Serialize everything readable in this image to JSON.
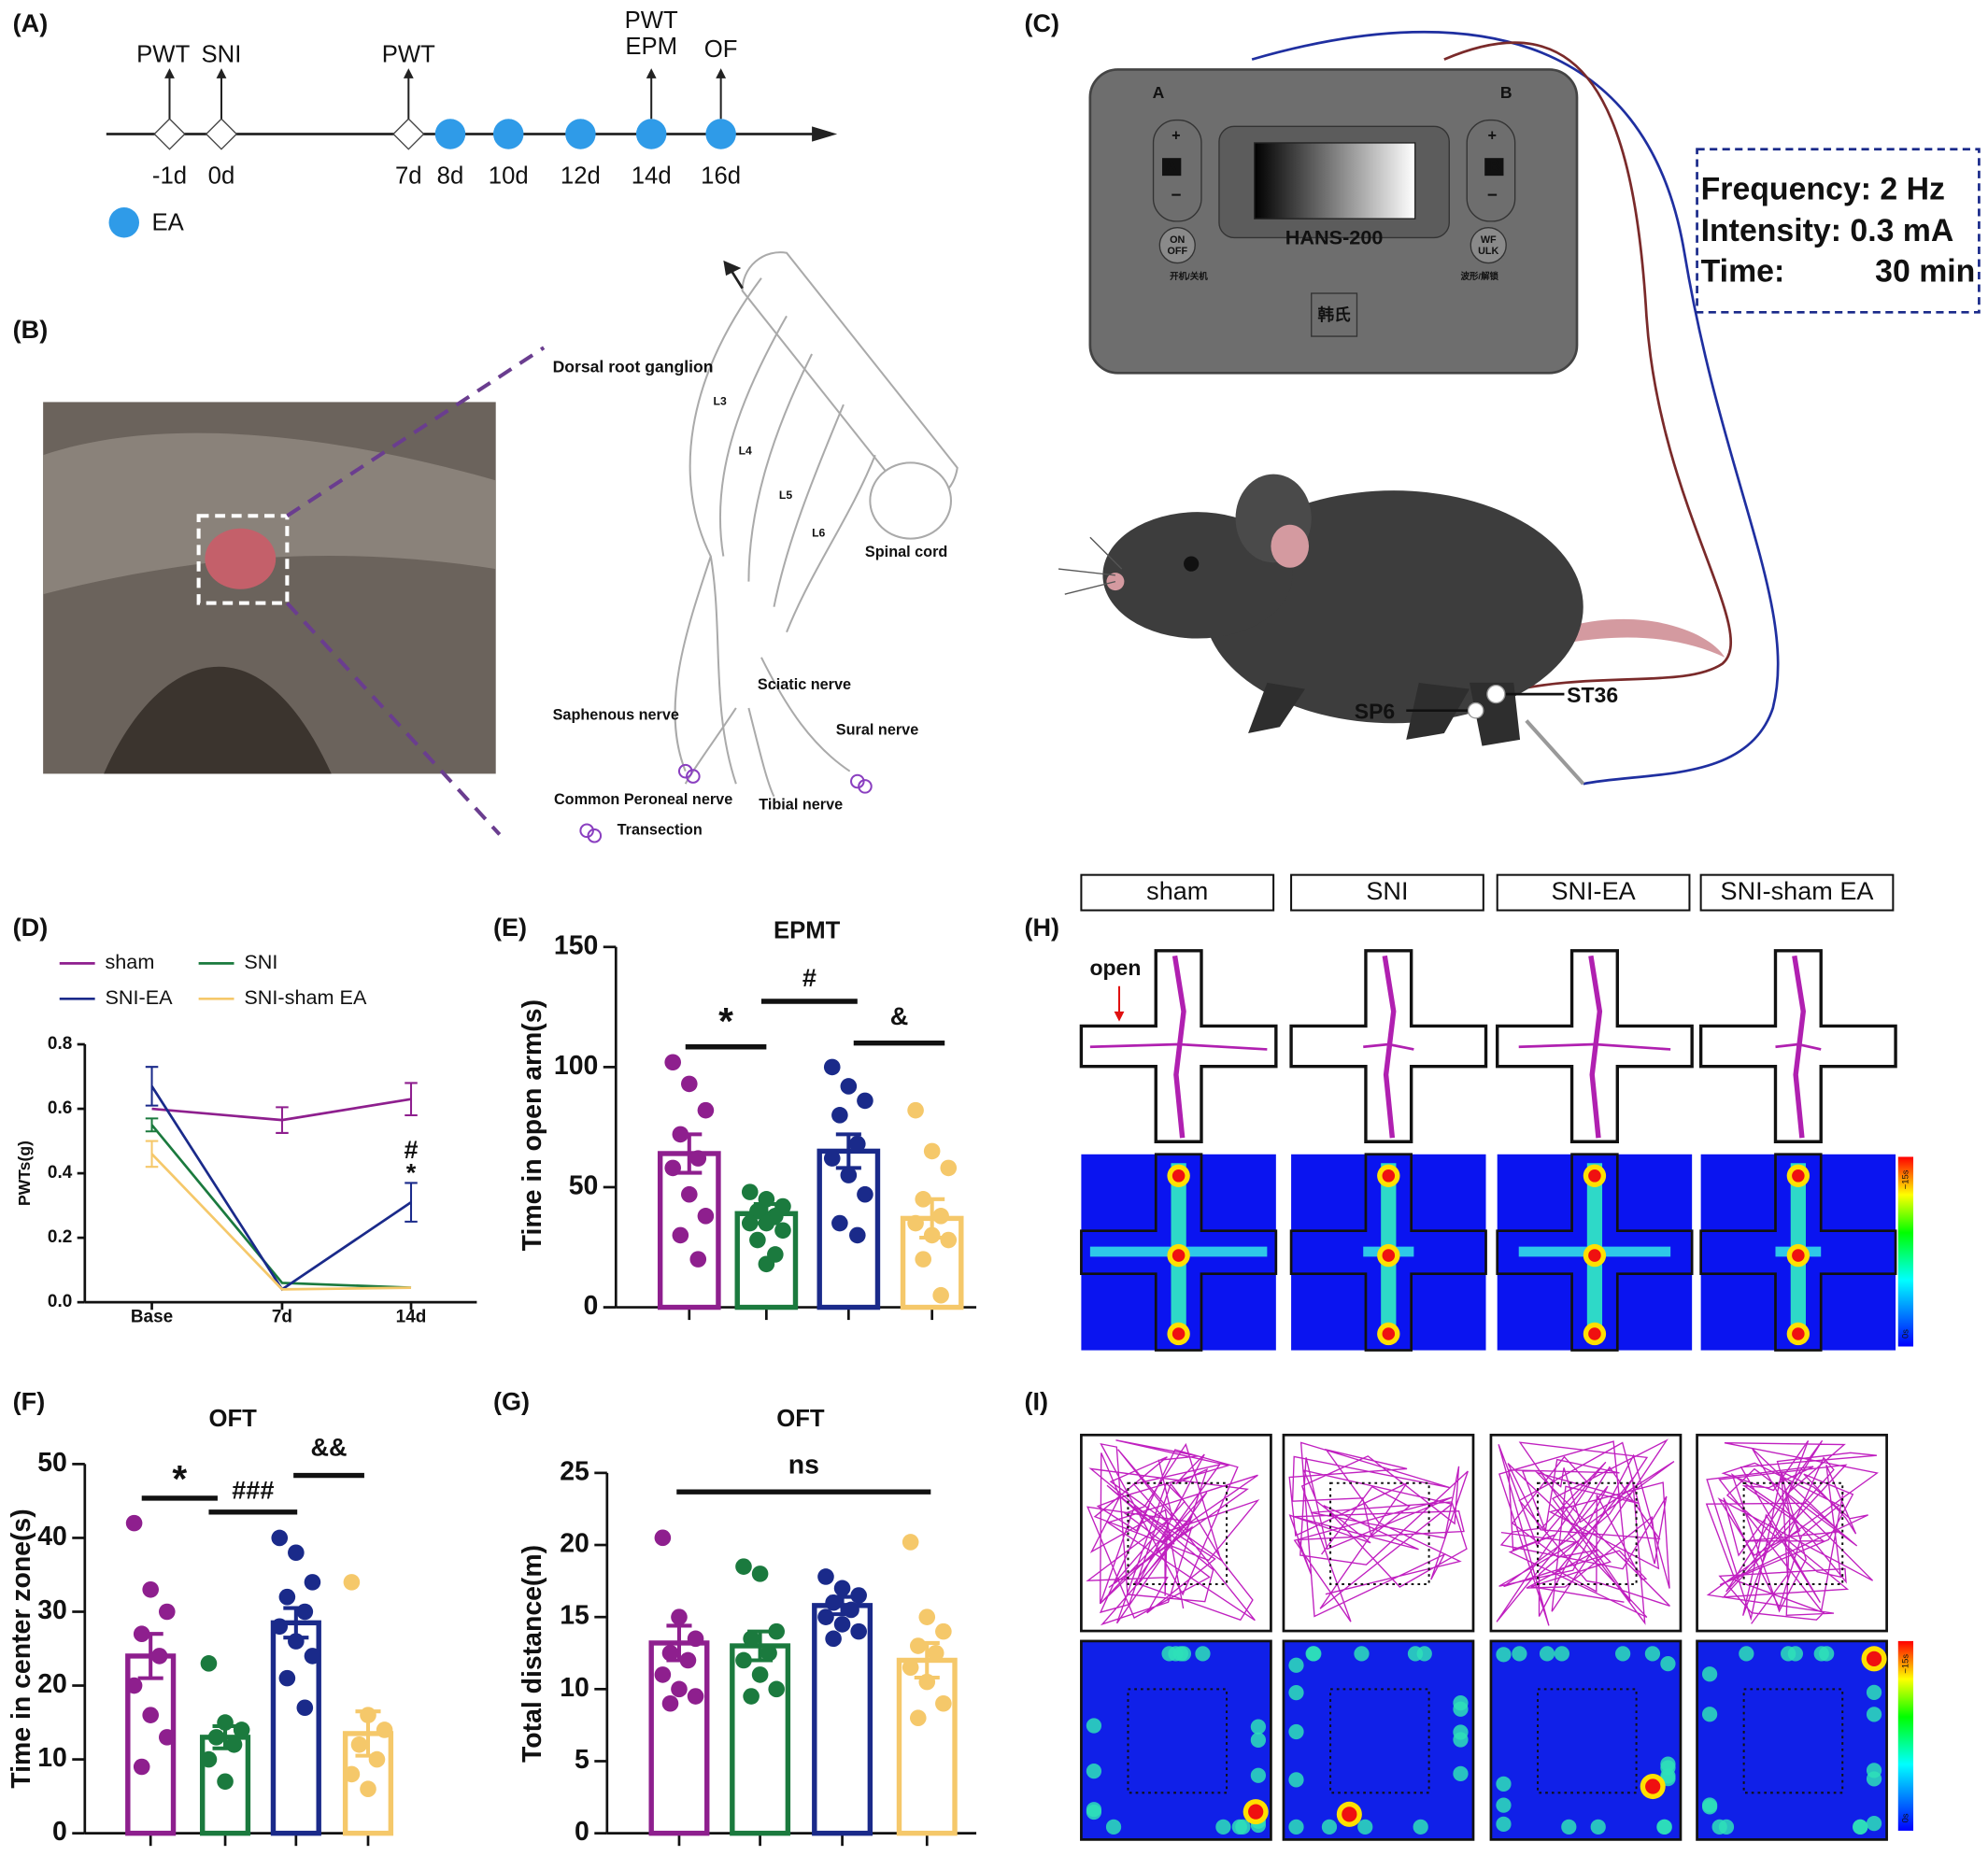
{
  "panel_labels": [
    "(A)",
    "(B)",
    "(C)",
    "(D)",
    "(E)",
    "(F)",
    "(G)",
    "(H)",
    "(I)"
  ],
  "panel_a": {
    "top_labels": [
      "PWT",
      "SNI",
      "PWT",
      "PWT",
      "EPM",
      "OF"
    ],
    "days": [
      "-1d",
      "0d",
      "7d",
      "8d",
      "10d",
      "12d",
      "14d",
      "16d"
    ],
    "legend": "EA"
  },
  "panel_b": {
    "labels": [
      "Dorsal root ganglion",
      "L3",
      "L4",
      "L5",
      "L6",
      "Spinal cord",
      "Sciatic nerve",
      "Saphenous nerve",
      "Sural nerve",
      "Common Peroneal nerve",
      "Tibial nerve",
      "Transection"
    ]
  },
  "panel_c": {
    "device_labels": [
      "A",
      "B",
      "+",
      "−",
      "+",
      "−",
      "A",
      "B",
      "HANS-200",
      "ON",
      "OFF",
      "WF",
      "ULK",
      "开机/关机",
      "波形/解锁",
      "韩氏"
    ],
    "settings": [
      "Frequency: 2 Hz",
      "Intensity: 0.3 mA",
      "Time:",
      "30 min"
    ],
    "points": [
      "SP6",
      "ST36"
    ]
  },
  "panel_h": {
    "groups": [
      "sham",
      "SNI",
      "SNI-EA",
      "SNI-sham EA"
    ],
    "open": "open",
    "scale": [
      "~15s",
      "0s"
    ]
  },
  "panel_i": {
    "scale": [
      "~15s",
      "0s"
    ]
  },
  "chart_data": [
    {
      "type": "line",
      "ylabel": "PWTs(g)",
      "categories": [
        "Base",
        "7d",
        "14d"
      ],
      "series": [
        {
          "name": "sham",
          "color": "#8e1f8e",
          "values": [
            0.6,
            0.565,
            0.63
          ],
          "errors": [
            null,
            0.04,
            0.05
          ]
        },
        {
          "name": "SNI",
          "color": "#1b7a3e",
          "values": [
            0.55,
            0.06,
            0.045
          ],
          "errors": [
            0.02,
            null,
            null
          ]
        },
        {
          "name": "SNI-EA",
          "color": "#1a2a8a",
          "values": [
            0.67,
            0.04,
            0.31
          ],
          "errors": [
            0.06,
            null,
            0.06
          ]
        },
        {
          "name": "SNI-sham EA",
          "color": "#f5c86a",
          "values": [
            0.46,
            0.04,
            0.045
          ],
          "errors": [
            0.04,
            null,
            null
          ]
        }
      ],
      "ylim": [
        0,
        0.8
      ],
      "yticks": [
        {
          "value": 0,
          "label": "0.0"
        },
        0.2,
        0.4,
        0.6,
        0.8
      ],
      "annotations": [
        {
          "text": "#",
          "color": "#f5c86a"
        },
        {
          "text": "*",
          "color": "#1b7a3e"
        }
      ]
    },
    {
      "type": "bar",
      "title": "EPMT",
      "ylabel": "Time in open arm(s)",
      "colors": [
        "#8e1f8e",
        "#1b7a3e",
        "#1a2a8a",
        "#f5c86a"
      ],
      "values": [
        64,
        39,
        65,
        37
      ],
      "errors": [
        8,
        4,
        7,
        8
      ],
      "points": [
        [
          102,
          93,
          82,
          72,
          62,
          58,
          47,
          38,
          30,
          20
        ],
        [
          48,
          45,
          42,
          40,
          38,
          35,
          35,
          32,
          28,
          22,
          18
        ],
        [
          100,
          92,
          86,
          80,
          68,
          62,
          55,
          47,
          35,
          30
        ],
        [
          82,
          65,
          58,
          45,
          38,
          35,
          30,
          28,
          20,
          5
        ]
      ],
      "ylim": [
        0,
        150
      ],
      "yticks": [
        0,
        50,
        100,
        150
      ],
      "annotations": [
        "*",
        "#",
        "&"
      ]
    },
    {
      "type": "bar",
      "title": "OFT",
      "ylabel": "Time in center zone(s)",
      "colors": [
        "#8e1f8e",
        "#1b7a3e",
        "#1a2a8a",
        "#f5c86a"
      ],
      "values": [
        24,
        13,
        28.5,
        13.5
      ],
      "errors": [
        3,
        1.5,
        2,
        3
      ],
      "points": [
        [
          42,
          33,
          30,
          27,
          24,
          20,
          16,
          13,
          9
        ],
        [
          23,
          15,
          14,
          13,
          12,
          10,
          7
        ],
        [
          40,
          38,
          34,
          32,
          30,
          28,
          26,
          24,
          21,
          17
        ],
        [
          34,
          16,
          14,
          12,
          10,
          8,
          6
        ]
      ],
      "ylim": [
        0,
        50
      ],
      "yticks": [
        0,
        10,
        20,
        30,
        40,
        50
      ],
      "annotations": [
        "*",
        "###",
        "&&"
      ]
    },
    {
      "type": "bar",
      "title": "OFT",
      "ylabel": "Total distance(m)",
      "colors": [
        "#8e1f8e",
        "#1b7a3e",
        "#1a2a8a",
        "#f5c86a"
      ],
      "values": [
        13.2,
        13,
        15.8,
        12
      ],
      "errors": [
        1.2,
        1,
        0.6,
        1.2
      ],
      "points": [
        [
          20.5,
          15,
          13.5,
          12.5,
          12,
          11,
          10,
          9.5,
          9
        ],
        [
          18.5,
          18,
          14,
          13.5,
          12.5,
          12,
          11,
          10,
          9.5
        ],
        [
          17.8,
          17,
          16.5,
          16,
          15.5,
          15,
          14.5,
          14,
          13.5
        ],
        [
          20.2,
          15,
          14,
          13,
          12.5,
          11.5,
          10.5,
          9,
          8
        ]
      ],
      "ylim": [
        0,
        25
      ],
      "yticks": [
        0,
        5,
        10,
        15,
        20,
        25
      ],
      "annotations": [
        "ns"
      ]
    }
  ]
}
